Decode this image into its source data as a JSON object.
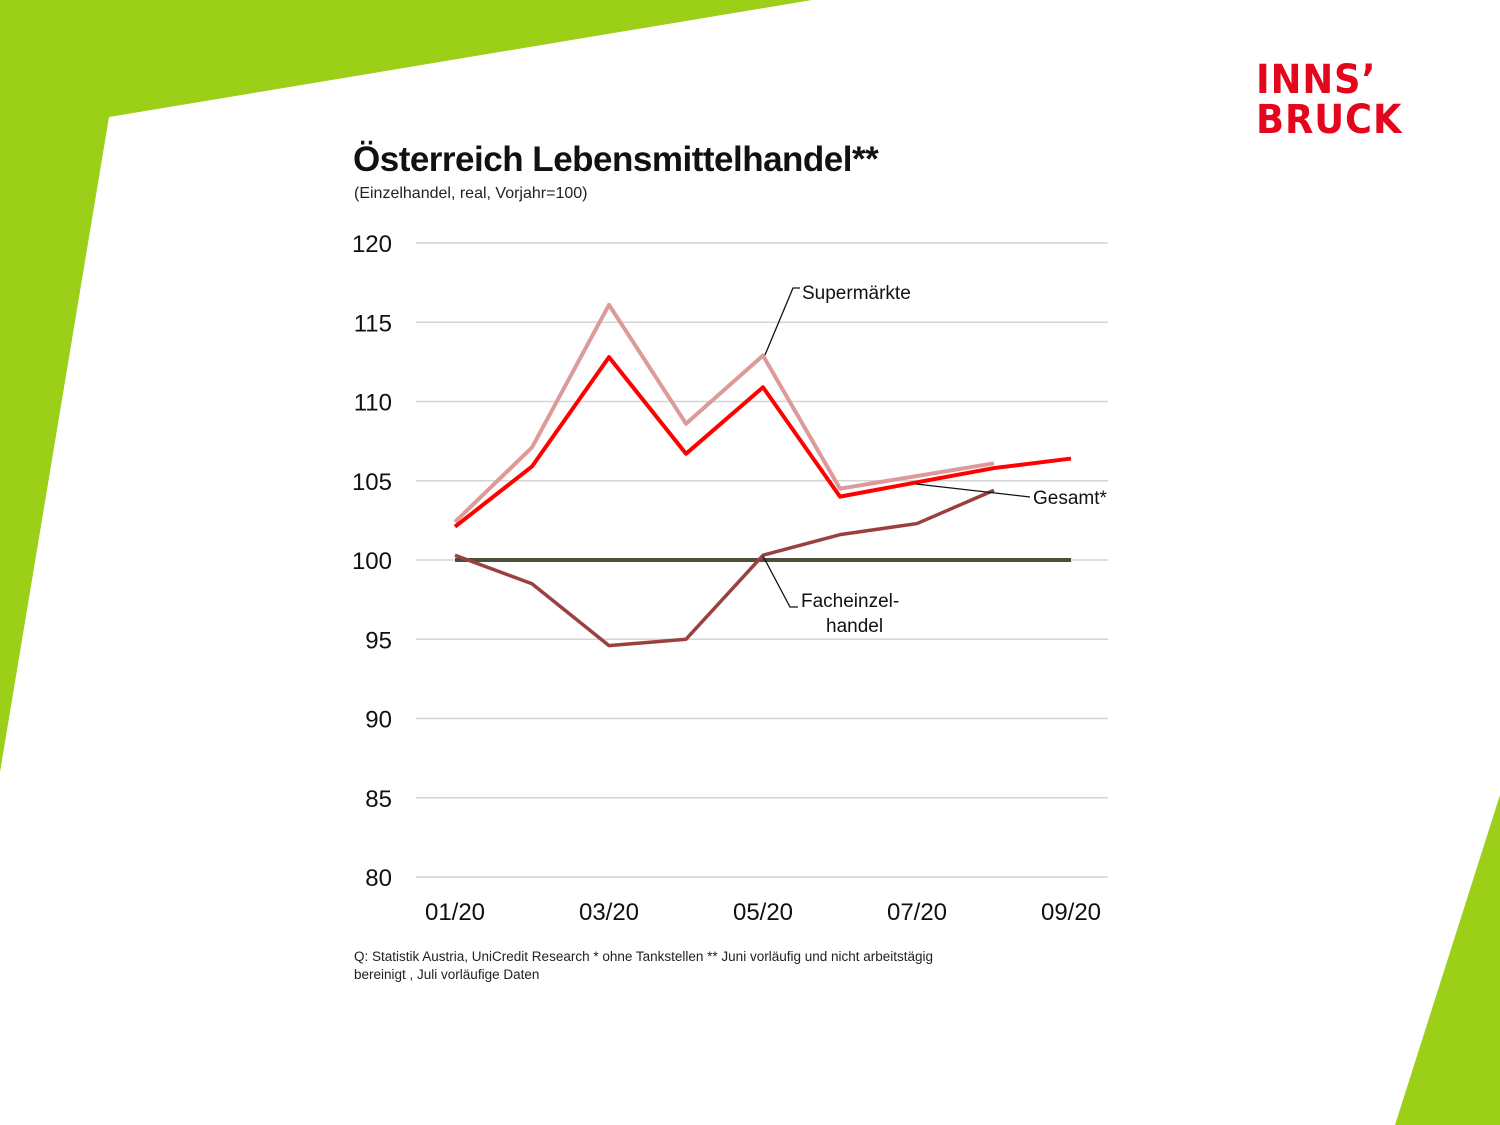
{
  "colors": {
    "green": "#9bcf18",
    "brand_red": "#e3061d"
  },
  "logo": {
    "line1": "INNS’",
    "line2": "BRUCK"
  },
  "chart_data": {
    "type": "line",
    "title": "Österreich Lebensmittelhandel**",
    "subtitle": "(Einzelhandel,  real, Vorjahr=100)",
    "x": [
      "01/20",
      "02/20",
      "03/20",
      "04/20",
      "05/20",
      "06/20",
      "07/20",
      "08/20",
      "09/20"
    ],
    "xtick_labels": [
      "01/20",
      "03/20",
      "05/20",
      "07/20",
      "09/20"
    ],
    "yticks": [
      120,
      115,
      110,
      105,
      100,
      95,
      90,
      85,
      80
    ],
    "ylim": [
      80,
      120
    ],
    "grid": true,
    "series": [
      {
        "name": "Supermärkte",
        "color": "#dc9a9a",
        "values": [
          102.4,
          107.1,
          116.1,
          108.6,
          112.9,
          104.5,
          105.3,
          106.1,
          null
        ]
      },
      {
        "name": "Gesamt*",
        "color": "#ff0000",
        "values": [
          102.1,
          105.9,
          112.8,
          106.7,
          110.9,
          104.0,
          104.9,
          105.8,
          106.4
        ]
      },
      {
        "name": "Facheinzel-\nhandel",
        "color": "#9b4040",
        "values": [
          100.3,
          98.5,
          94.6,
          95.0,
          100.3,
          101.6,
          102.3,
          104.4,
          null
        ]
      },
      {
        "color": "#4d4d3a",
        "values": [
          100,
          100,
          100,
          100,
          100,
          100,
          100,
          100,
          100
        ]
      }
    ],
    "annotations": {
      "supermaerkte": "Supermärkte",
      "gesamt": "Gesamt*",
      "fach_line1": "Facheinzel-",
      "fach_line2": "handel"
    },
    "footnote": "Q: Statistik Austria, UniCredit  Research  * ohne Tankstellen  ** Juni vorläufig  und nicht arbeitstägig  bereinigt  , Juli vorläufige  Daten"
  }
}
